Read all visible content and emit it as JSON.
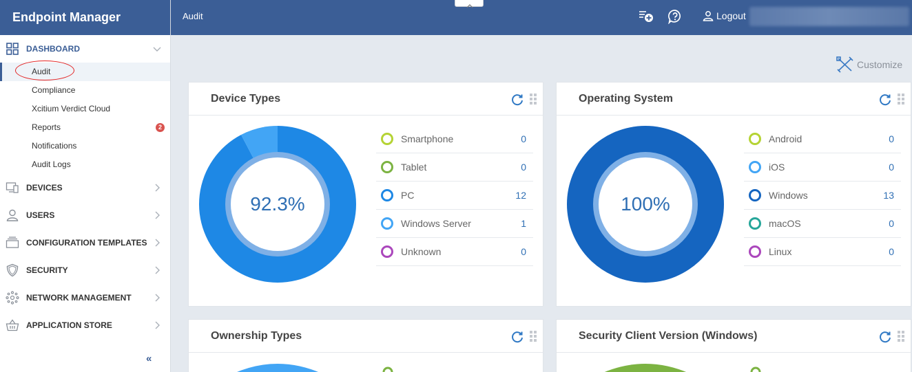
{
  "app": {
    "title": "Endpoint Manager"
  },
  "topbar": {
    "page_title": "Audit",
    "logout_label": "Logout"
  },
  "sidebar": {
    "sections": [
      {
        "id": "dashboard",
        "label": "DASHBOARD",
        "expanded": true,
        "items": [
          {
            "label": "Audit",
            "active": true
          },
          {
            "label": "Compliance"
          },
          {
            "label": "Xcitium Verdict Cloud"
          },
          {
            "label": "Reports",
            "badge": "2"
          },
          {
            "label": "Notifications"
          },
          {
            "label": "Audit Logs"
          }
        ]
      },
      {
        "id": "devices",
        "label": "DEVICES"
      },
      {
        "id": "users",
        "label": "USERS"
      },
      {
        "id": "config",
        "label": "CONFIGURATION TEMPLATES"
      },
      {
        "id": "security",
        "label": "SECURITY"
      },
      {
        "id": "network",
        "label": "NETWORK MANAGEMENT"
      },
      {
        "id": "appstore",
        "label": "APPLICATION STORE"
      }
    ],
    "collapse_glyph": "«"
  },
  "main": {
    "customize_label": "Customize",
    "cards": [
      {
        "title": "Device Types",
        "percent_label": "92.3%",
        "chart_data": {
          "type": "pie",
          "categories": [
            "Smartphone",
            "Tablet",
            "PC",
            "Windows Server",
            "Unknown"
          ],
          "values": [
            0,
            0,
            12,
            1,
            0
          ],
          "colors": [
            "#b5d334",
            "#7cb342",
            "#1e88e5",
            "#42a5f5",
            "#ab47bc"
          ]
        }
      },
      {
        "title": "Operating System",
        "percent_label": "100%",
        "chart_data": {
          "type": "pie",
          "categories": [
            "Android",
            "iOS",
            "Windows",
            "macOS",
            "Linux"
          ],
          "values": [
            0,
            0,
            13,
            0,
            0
          ],
          "colors": [
            "#b5d334",
            "#42a5f5",
            "#1565c0",
            "#26a69a",
            "#ab47bc"
          ]
        }
      },
      {
        "title": "Ownership Types"
      },
      {
        "title": "Security Client Version (Windows)"
      }
    ]
  },
  "colors": {
    "brand": "#3b5e96",
    "badge": "#d9534f"
  }
}
